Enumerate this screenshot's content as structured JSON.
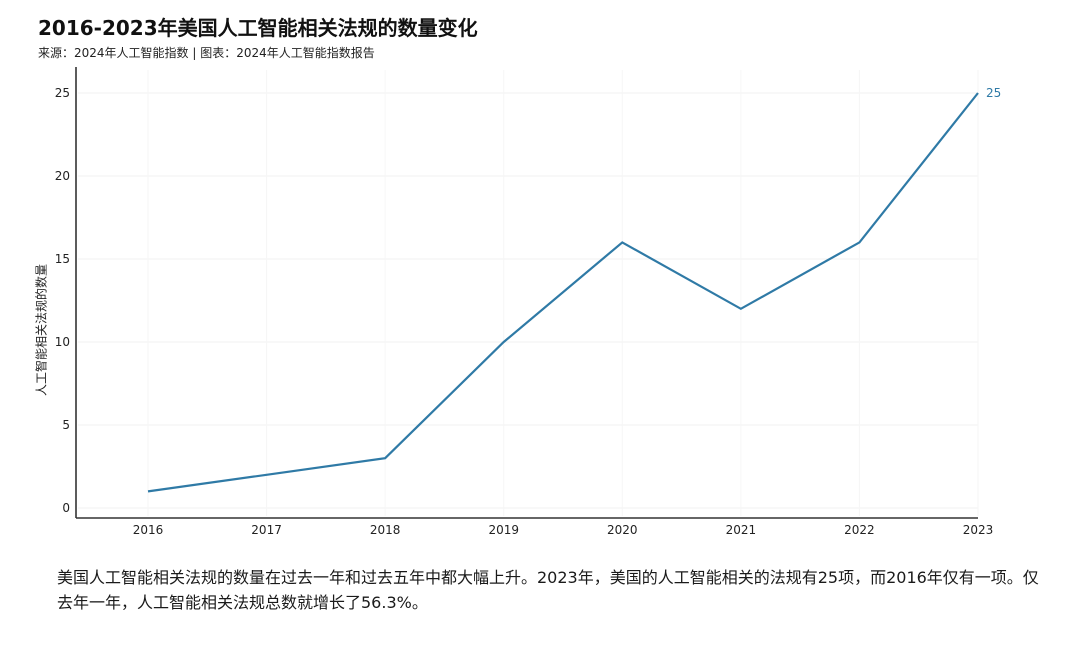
{
  "title": "2016-2023年美国人工智能相关法规的数量变化",
  "subtitle": "来源：2024年人工智能指数 | 图表：2024年人工智能指数报告",
  "caption": "美国人工智能相关法规的数量在过去一年和过去五年中都大幅上升。2023年，美国的人工智能相关的法规有25项，而2016年仅有一项。仅去年一年，人工智能相关法规总数就增长了56.3%。",
  "colors": {
    "line": "#2f7aa6",
    "axis": "#333333",
    "grid": "#f0f0f0",
    "label": "#2f7aa6"
  },
  "chart_data": {
    "type": "line",
    "title": "2016-2023年美国人工智能相关法规的数量变化",
    "subtitle": "来源：2024年人工智能指数 | 图表：2024年人工智能指数报告",
    "xlabel": "",
    "ylabel": "人工智能相关法规的数量",
    "categories": [
      "2016",
      "2017",
      "2018",
      "2019",
      "2020",
      "2021",
      "2022",
      "2023"
    ],
    "series": [
      {
        "name": "人工智能相关法规的数量",
        "values": [
          1,
          2,
          3,
          10,
          16,
          12,
          16,
          25
        ]
      }
    ],
    "yticks": [
      0,
      5,
      10,
      15,
      20,
      25
    ],
    "ylim": [
      0,
      26
    ],
    "grid": true,
    "legend": "none",
    "annotations": [
      {
        "x": "2023",
        "y": 25,
        "text": "25"
      }
    ]
  }
}
